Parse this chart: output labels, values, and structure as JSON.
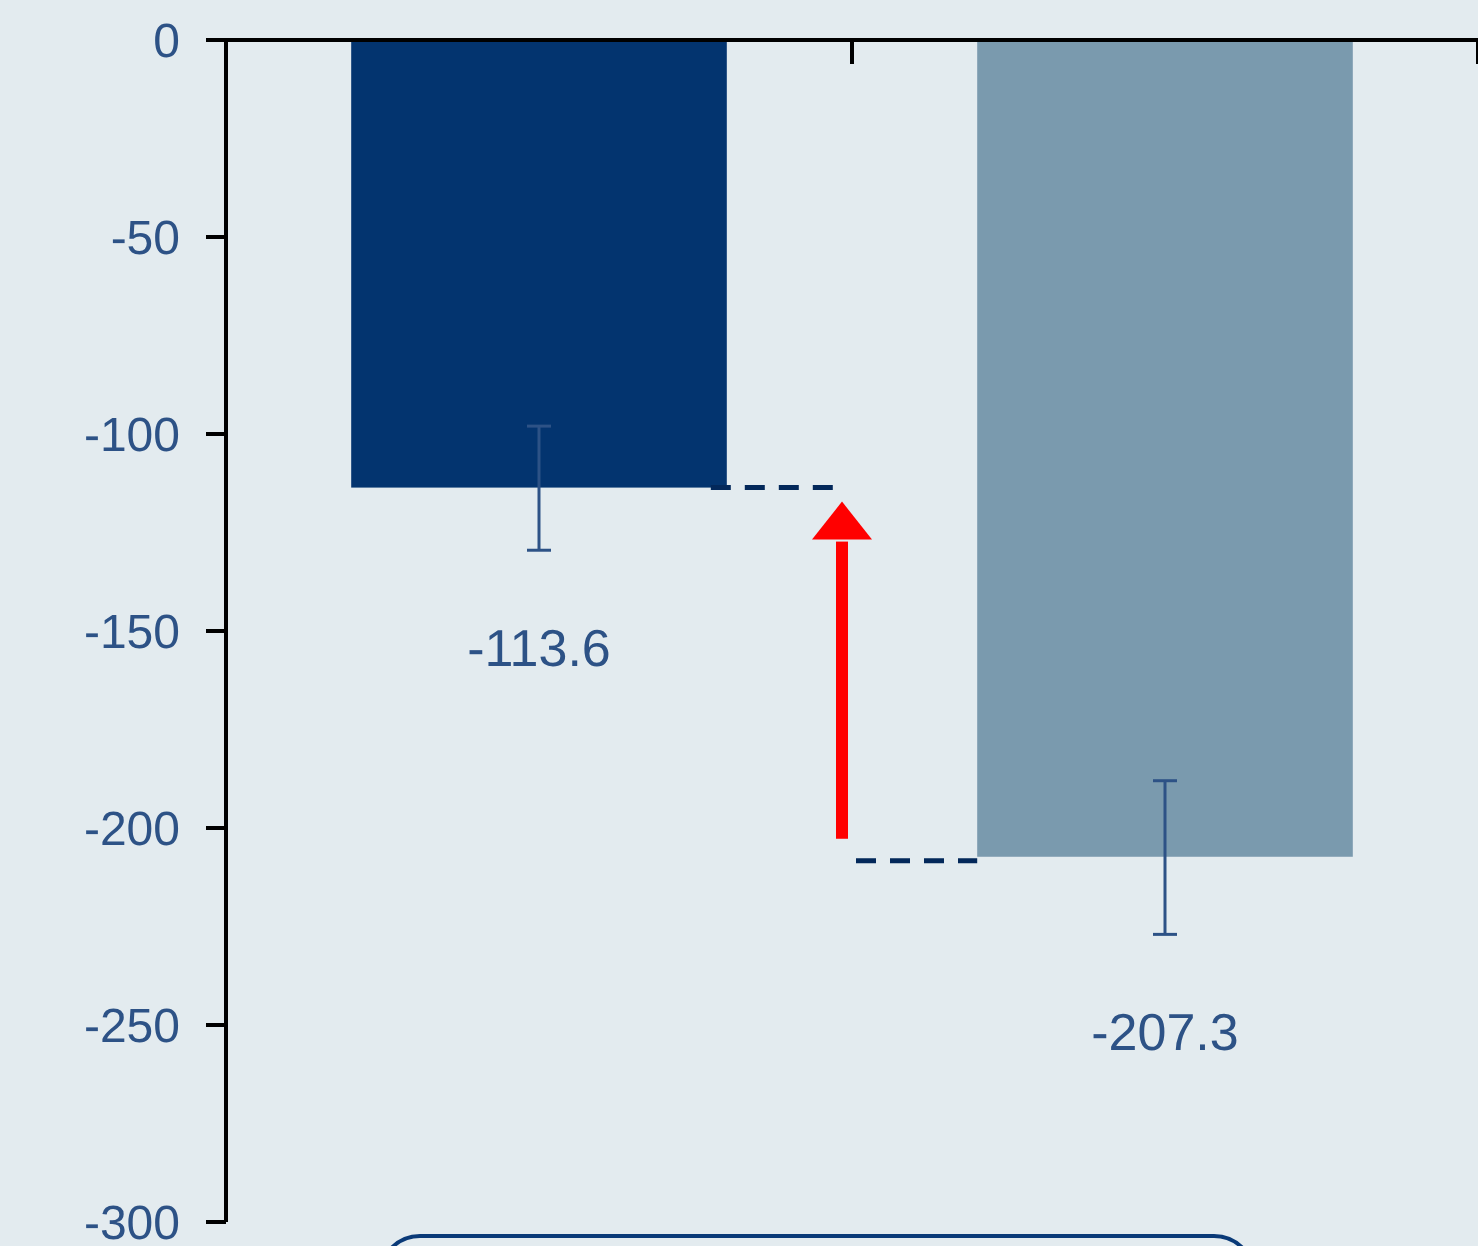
{
  "chart_data": {
    "type": "bar",
    "categories": [
      null,
      null
    ],
    "values": [
      -113.6,
      -207.3
    ],
    "colors": [
      "#03346f",
      "#7a9aae"
    ],
    "errors": [
      [
        -129.5,
        -98
      ],
      [
        -227,
        -188
      ]
    ],
    "data_labels": true,
    "ylim": [
      -300,
      0
    ],
    "yticks": [
      0,
      -50,
      -100,
      -150,
      -200,
      -250,
      -300
    ],
    "grid": false
  }
}
